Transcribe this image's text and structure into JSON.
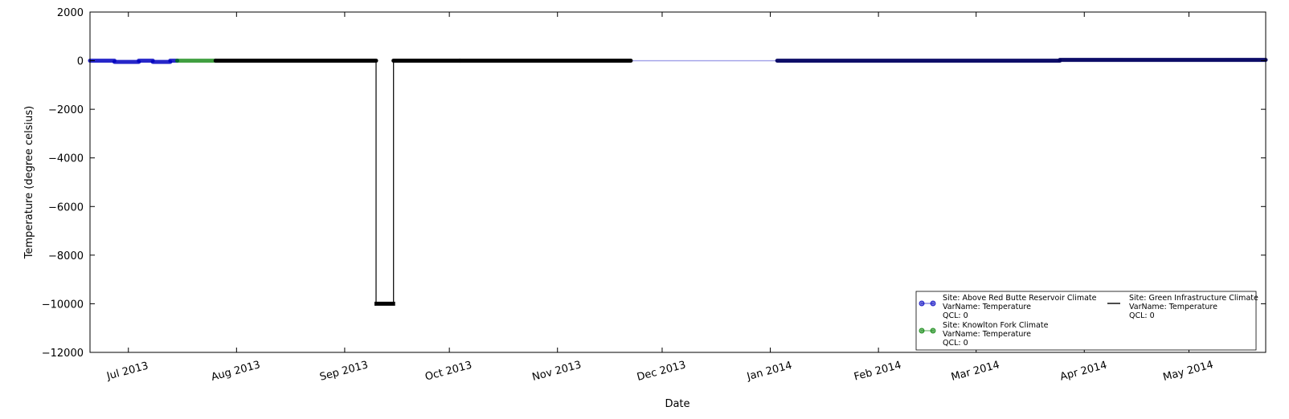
{
  "chart_data": {
    "type": "line",
    "title": "",
    "xlabel": "Date",
    "ylabel": "Temperature (degree celsius)",
    "xlim": [
      "2013-06-20",
      "2014-05-23"
    ],
    "ylim": [
      -12000,
      2000
    ],
    "x_ticks": [
      {
        "date": "2013-07-01",
        "label": "Jul 2013"
      },
      {
        "date": "2013-08-01",
        "label": "Aug 2013"
      },
      {
        "date": "2013-09-01",
        "label": "Sep 2013"
      },
      {
        "date": "2013-10-01",
        "label": "Oct 2013"
      },
      {
        "date": "2013-11-01",
        "label": "Nov 2013"
      },
      {
        "date": "2013-12-01",
        "label": "Dec 2013"
      },
      {
        "date": "2014-01-01",
        "label": "Jan 2014"
      },
      {
        "date": "2014-02-01",
        "label": "Feb 2014"
      },
      {
        "date": "2014-03-01",
        "label": "Mar 2014"
      },
      {
        "date": "2014-04-01",
        "label": "Apr 2014"
      },
      {
        "date": "2014-05-01",
        "label": "May 2014"
      }
    ],
    "y_ticks": [
      2000,
      0,
      -2000,
      -4000,
      -6000,
      -8000,
      -10000,
      -12000
    ],
    "grid": false,
    "legend_position": "bottom-right",
    "series": [
      {
        "legend": [
          "Site: Above Red Butte Reservoir Climate",
          "VarName: Temperature",
          "QCL: 0"
        ],
        "color": "#0000bf",
        "marker": "circle",
        "segments": [
          {
            "start": "2013-06-20",
            "end": "2013-06-27",
            "value": 0
          },
          {
            "start": "2013-06-27",
            "end": "2013-07-04",
            "value": -50
          },
          {
            "start": "2013-07-04",
            "end": "2013-07-08",
            "value": 0
          },
          {
            "start": "2013-07-08",
            "end": "2013-07-13",
            "value": -50
          },
          {
            "start": "2013-07-13",
            "end": "2013-07-15",
            "value": 0
          }
        ],
        "connectors": [
          {
            "start": "2013-09-17",
            "end": "2013-09-18",
            "value": 0
          },
          {
            "start": "2013-11-22",
            "end": "2014-01-03",
            "value": 0
          }
        ],
        "segments2": [
          {
            "start": "2014-01-03",
            "end": "2014-03-25",
            "value": 0
          },
          {
            "start": "2014-03-25",
            "end": "2014-05-23",
            "value": 30
          }
        ]
      },
      {
        "legend": [
          "Site: Knowlton Fork Climate",
          "VarName: Temperature",
          "QCL: 0"
        ],
        "color": "#007f00",
        "marker": "circle",
        "segments": [
          {
            "start": "2013-07-15",
            "end": "2013-07-26",
            "value": 0
          }
        ]
      },
      {
        "legend": [
          "Site: Green Infrastructure Climate",
          "VarName: Temperature",
          "QCL: 0"
        ],
        "color": "#000000",
        "marker": "none",
        "segments": [
          {
            "start": "2013-07-26",
            "end": "2013-09-10",
            "value": 0
          },
          {
            "start": "2013-10-04",
            "end": "2013-11-22",
            "value": 0
          }
        ],
        "spike": {
          "start": "2013-09-10",
          "end": "2013-09-15",
          "value": -10000
        },
        "segments_after_spike": [
          {
            "start": "2013-09-15",
            "end": "2013-10-04",
            "value": 0
          }
        ]
      }
    ]
  }
}
